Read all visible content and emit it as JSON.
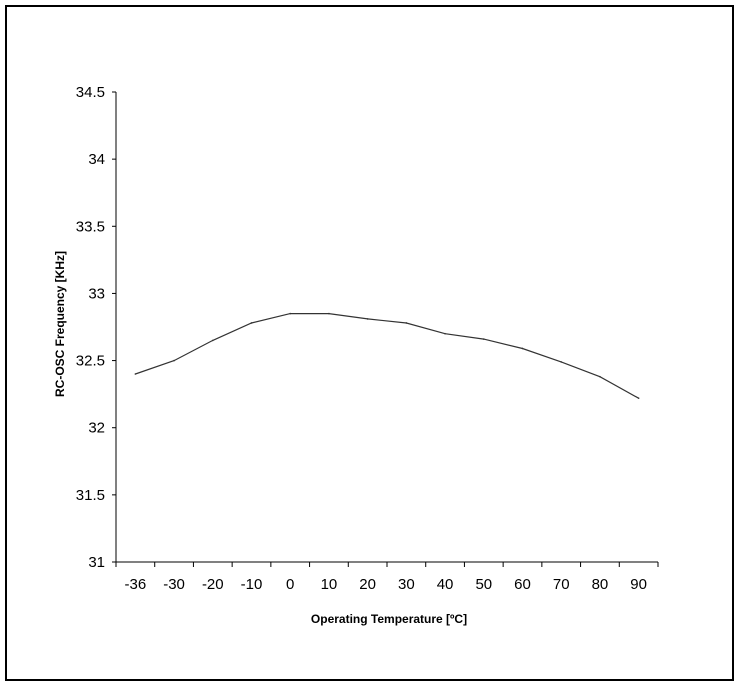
{
  "chart_data": {
    "type": "line",
    "title": "",
    "xlabel": "Operating Temperature [ºC]",
    "ylabel": "RC-OSC Frequency [KHz]",
    "categories": [
      "-36",
      "-30",
      "-20",
      "-10",
      "0",
      "10",
      "20",
      "30",
      "40",
      "50",
      "60",
      "70",
      "80",
      "90"
    ],
    "series": [
      {
        "values": [
          32.4,
          32.5,
          32.65,
          32.78,
          32.85,
          32.85,
          32.81,
          32.78,
          32.7,
          32.66,
          32.59,
          32.49,
          32.38,
          32.22
        ]
      }
    ],
    "ylim": [
      31,
      34.5
    ],
    "yticks": [
      31,
      31.5,
      32,
      32.5,
      33,
      33.5,
      34,
      34.5
    ],
    "grid": false,
    "legend": "none",
    "line_color": "#333333"
  }
}
